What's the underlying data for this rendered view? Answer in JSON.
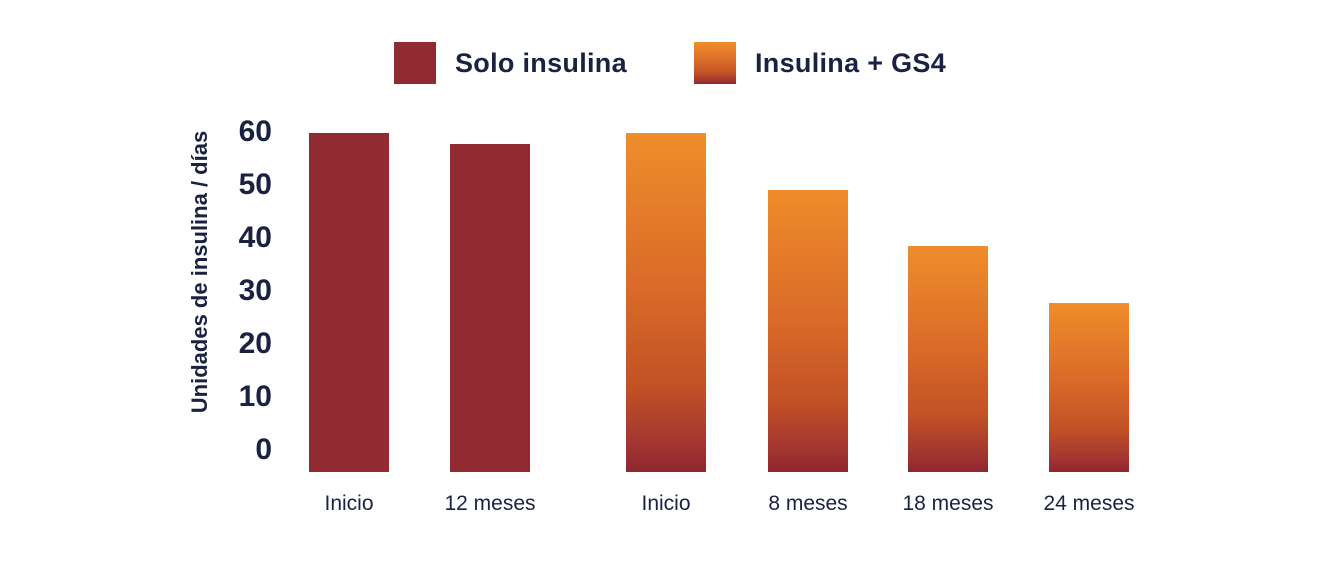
{
  "chart_data": {
    "type": "bar",
    "title": "",
    "xlabel": "",
    "ylabel": "Unidades de insulina / días",
    "ylim": [
      0,
      60
    ],
    "yticks": [
      0,
      10,
      20,
      30,
      40,
      50,
      60
    ],
    "grid": false,
    "legend_position": "top",
    "background_color": "#ffffff",
    "text_color": "#1A2242",
    "series": [
      {
        "name": "Solo insulina",
        "color": "#922A32",
        "points": [
          {
            "x": "Inicio",
            "y": 60
          },
          {
            "x": "12 meses",
            "y": 58
          }
        ]
      },
      {
        "name": "Insulina + GS4",
        "gradient_stops": [
          {
            "color": "#EF8D2B",
            "offset": 0
          },
          {
            "color": "#DA6B28",
            "offset": 45
          },
          {
            "color": "#C25126",
            "offset": 75
          },
          {
            "color": "#A23530",
            "offset": 92
          },
          {
            "color": "#8F2730",
            "offset": 100
          }
        ],
        "points": [
          {
            "x": "Inicio",
            "y": 60
          },
          {
            "x": "8 meses",
            "y": 50
          },
          {
            "x": "18 meses",
            "y": 40
          },
          {
            "x": "24 meses",
            "y": 30
          }
        ]
      }
    ]
  }
}
